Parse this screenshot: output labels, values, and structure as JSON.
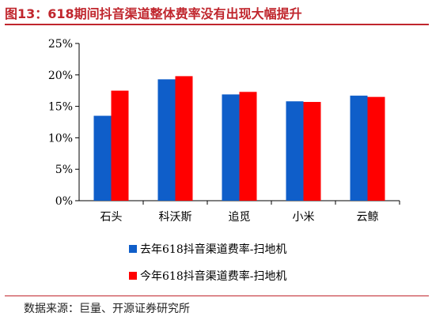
{
  "title": "图13：618期间抖音渠道整体费率没有出现大幅提升",
  "source": "数据来源：巨量、开源证券研究所",
  "colors": {
    "title": "#c0262d",
    "series1": "#0f5ec9",
    "series2": "#ff0000"
  },
  "chart_data": {
    "type": "bar",
    "title": "",
    "xlabel": "",
    "ylabel": "",
    "categories": [
      "石头",
      "科沃斯",
      "追觅",
      "小米",
      "云鲸"
    ],
    "series": [
      {
        "name": "去年618抖音渠道费率-扫地机",
        "values": [
          13.5,
          19.3,
          16.9,
          15.8,
          16.7
        ]
      },
      {
        "name": "今年618抖音渠道费率-扫地机",
        "values": [
          17.5,
          19.8,
          17.3,
          15.7,
          16.5
        ]
      }
    ],
    "ylim": [
      0,
      25
    ],
    "yticks": [
      "0%",
      "5%",
      "10%",
      "15%",
      "20%",
      "25%"
    ],
    "grid": false,
    "legend": "bottom"
  }
}
